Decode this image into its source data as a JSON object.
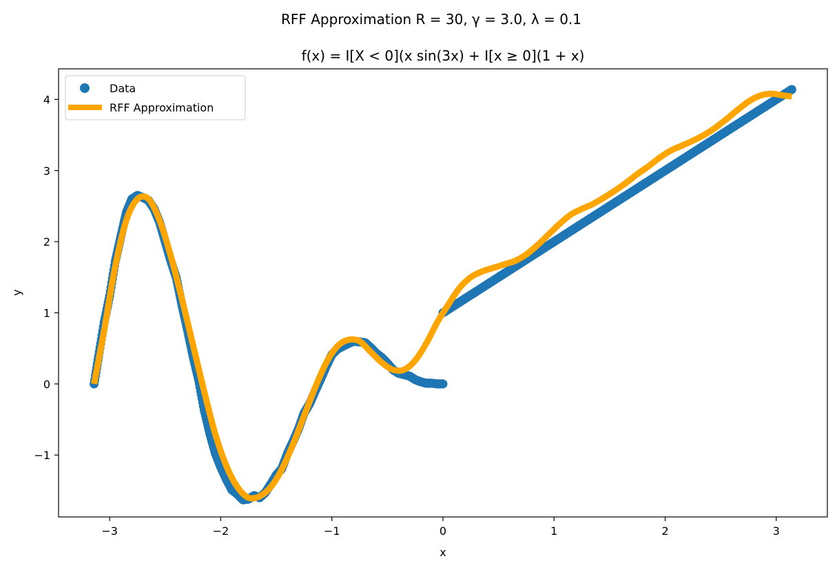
{
  "figure": {
    "suptitle": "RFF Approximation R = 30, γ = 3.0, λ = 0.1"
  },
  "chart_data": {
    "type": "scatter",
    "title": "f(x) = I[X < 0](x sin(3x) + I[x ≥ 0](1 + x)",
    "xlabel": "x",
    "ylabel": "y",
    "xlim": [
      -3.46,
      3.46
    ],
    "ylim": [
      -1.87,
      4.43
    ],
    "xticks": [
      -3,
      -2,
      -1,
      0,
      1,
      2,
      3
    ],
    "xtick_labels": [
      "−3",
      "−2",
      "−1",
      "0",
      "1",
      "2",
      "3"
    ],
    "yticks": [
      -1,
      0,
      1,
      2,
      3,
      4
    ],
    "ytick_labels": [
      "−1",
      "0",
      "1",
      "2",
      "3",
      "4"
    ],
    "grid": false,
    "legend_position": "upper-left",
    "series": [
      {
        "name": "Data",
        "kind": "scatter",
        "color": "#1f77b4",
        "x": [
          -3.14,
          -3.1,
          -3.05,
          -3.0,
          -2.95,
          -2.9,
          -2.85,
          -2.8,
          -2.75,
          -2.7,
          -2.65,
          -2.6,
          -2.55,
          -2.5,
          -2.45,
          -2.4,
          -2.35,
          -2.3,
          -2.25,
          -2.2,
          -2.15,
          -2.1,
          -2.05,
          -2.0,
          -1.95,
          -1.9,
          -1.85,
          -1.8,
          -1.75,
          -1.7,
          -1.65,
          -1.6,
          -1.55,
          -1.5,
          -1.45,
          -1.4,
          -1.35,
          -1.3,
          -1.25,
          -1.2,
          -1.15,
          -1.1,
          -1.05,
          -1.0,
          -0.95,
          -0.9,
          -0.85,
          -0.8,
          -0.75,
          -0.7,
          -0.65,
          -0.6,
          -0.55,
          -0.5,
          -0.45,
          -0.4,
          -0.35,
          -0.3,
          -0.25,
          -0.2,
          -0.15,
          -0.1,
          -0.05,
          0.0,
          0.0,
          0.1,
          0.2,
          0.3,
          0.4,
          0.5,
          0.6,
          0.7,
          0.8,
          0.9,
          1.0,
          1.1,
          1.2,
          1.3,
          1.4,
          1.5,
          1.6,
          1.7,
          1.8,
          1.9,
          2.0,
          2.1,
          2.2,
          2.3,
          2.4,
          2.5,
          2.6,
          2.7,
          2.8,
          2.9,
          3.0,
          3.1,
          3.14
        ],
        "y": [
          0.0,
          0.39,
          0.86,
          1.24,
          1.72,
          2.07,
          2.41,
          2.6,
          2.65,
          2.62,
          2.58,
          2.46,
          2.27,
          2.0,
          1.73,
          1.49,
          1.11,
          0.76,
          0.39,
          0.06,
          -0.36,
          -0.69,
          -0.97,
          -1.17,
          -1.34,
          -1.49,
          -1.55,
          -1.63,
          -1.62,
          -1.57,
          -1.6,
          -1.53,
          -1.41,
          -1.28,
          -1.19,
          -0.98,
          -0.81,
          -0.63,
          -0.41,
          -0.28,
          -0.1,
          0.07,
          0.25,
          0.41,
          0.49,
          0.53,
          0.57,
          0.6,
          0.59,
          0.58,
          0.51,
          0.43,
          0.37,
          0.29,
          0.2,
          0.15,
          0.13,
          0.11,
          0.06,
          0.03,
          0.01,
          0.01,
          0.0,
          0.0,
          1.0,
          1.1,
          1.2,
          1.3,
          1.4,
          1.5,
          1.6,
          1.7,
          1.8,
          1.9,
          2.0,
          2.1,
          2.2,
          2.3,
          2.4,
          2.5,
          2.6,
          2.7,
          2.8,
          2.9,
          3.0,
          3.1,
          3.2,
          3.3,
          3.4,
          3.5,
          3.6,
          3.7,
          3.8,
          3.9,
          4.0,
          4.1,
          4.14
        ]
      },
      {
        "name": "RFF Approximation",
        "kind": "line",
        "color": "#ffa500",
        "x": [
          -3.14,
          -3.05,
          -2.95,
          -2.85,
          -2.75,
          -2.65,
          -2.55,
          -2.45,
          -2.35,
          -2.25,
          -2.15,
          -2.05,
          -1.95,
          -1.85,
          -1.75,
          -1.65,
          -1.55,
          -1.45,
          -1.35,
          -1.25,
          -1.15,
          -1.05,
          -0.95,
          -0.85,
          -0.75,
          -0.65,
          -0.55,
          -0.45,
          -0.35,
          -0.25,
          -0.15,
          -0.05,
          0.05,
          0.15,
          0.25,
          0.35,
          0.45,
          0.55,
          0.65,
          0.75,
          0.85,
          0.95,
          1.05,
          1.15,
          1.25,
          1.35,
          1.45,
          1.55,
          1.65,
          1.75,
          1.85,
          1.95,
          2.05,
          2.15,
          2.25,
          2.35,
          2.45,
          2.55,
          2.65,
          2.75,
          2.85,
          2.95,
          3.05,
          3.14
        ],
        "y": [
          0.0,
          0.75,
          1.65,
          2.3,
          2.6,
          2.6,
          2.3,
          1.8,
          1.2,
          0.55,
          -0.1,
          -0.7,
          -1.15,
          -1.45,
          -1.6,
          -1.58,
          -1.45,
          -1.2,
          -0.85,
          -0.45,
          -0.05,
          0.3,
          0.53,
          0.62,
          0.6,
          0.45,
          0.3,
          0.2,
          0.2,
          0.33,
          0.57,
          0.87,
          1.12,
          1.35,
          1.5,
          1.58,
          1.63,
          1.68,
          1.73,
          1.82,
          1.95,
          2.1,
          2.25,
          2.38,
          2.46,
          2.53,
          2.62,
          2.72,
          2.83,
          2.95,
          3.06,
          3.18,
          3.28,
          3.35,
          3.42,
          3.5,
          3.6,
          3.72,
          3.85,
          3.97,
          4.05,
          4.08,
          4.06,
          4.04
        ]
      }
    ]
  }
}
